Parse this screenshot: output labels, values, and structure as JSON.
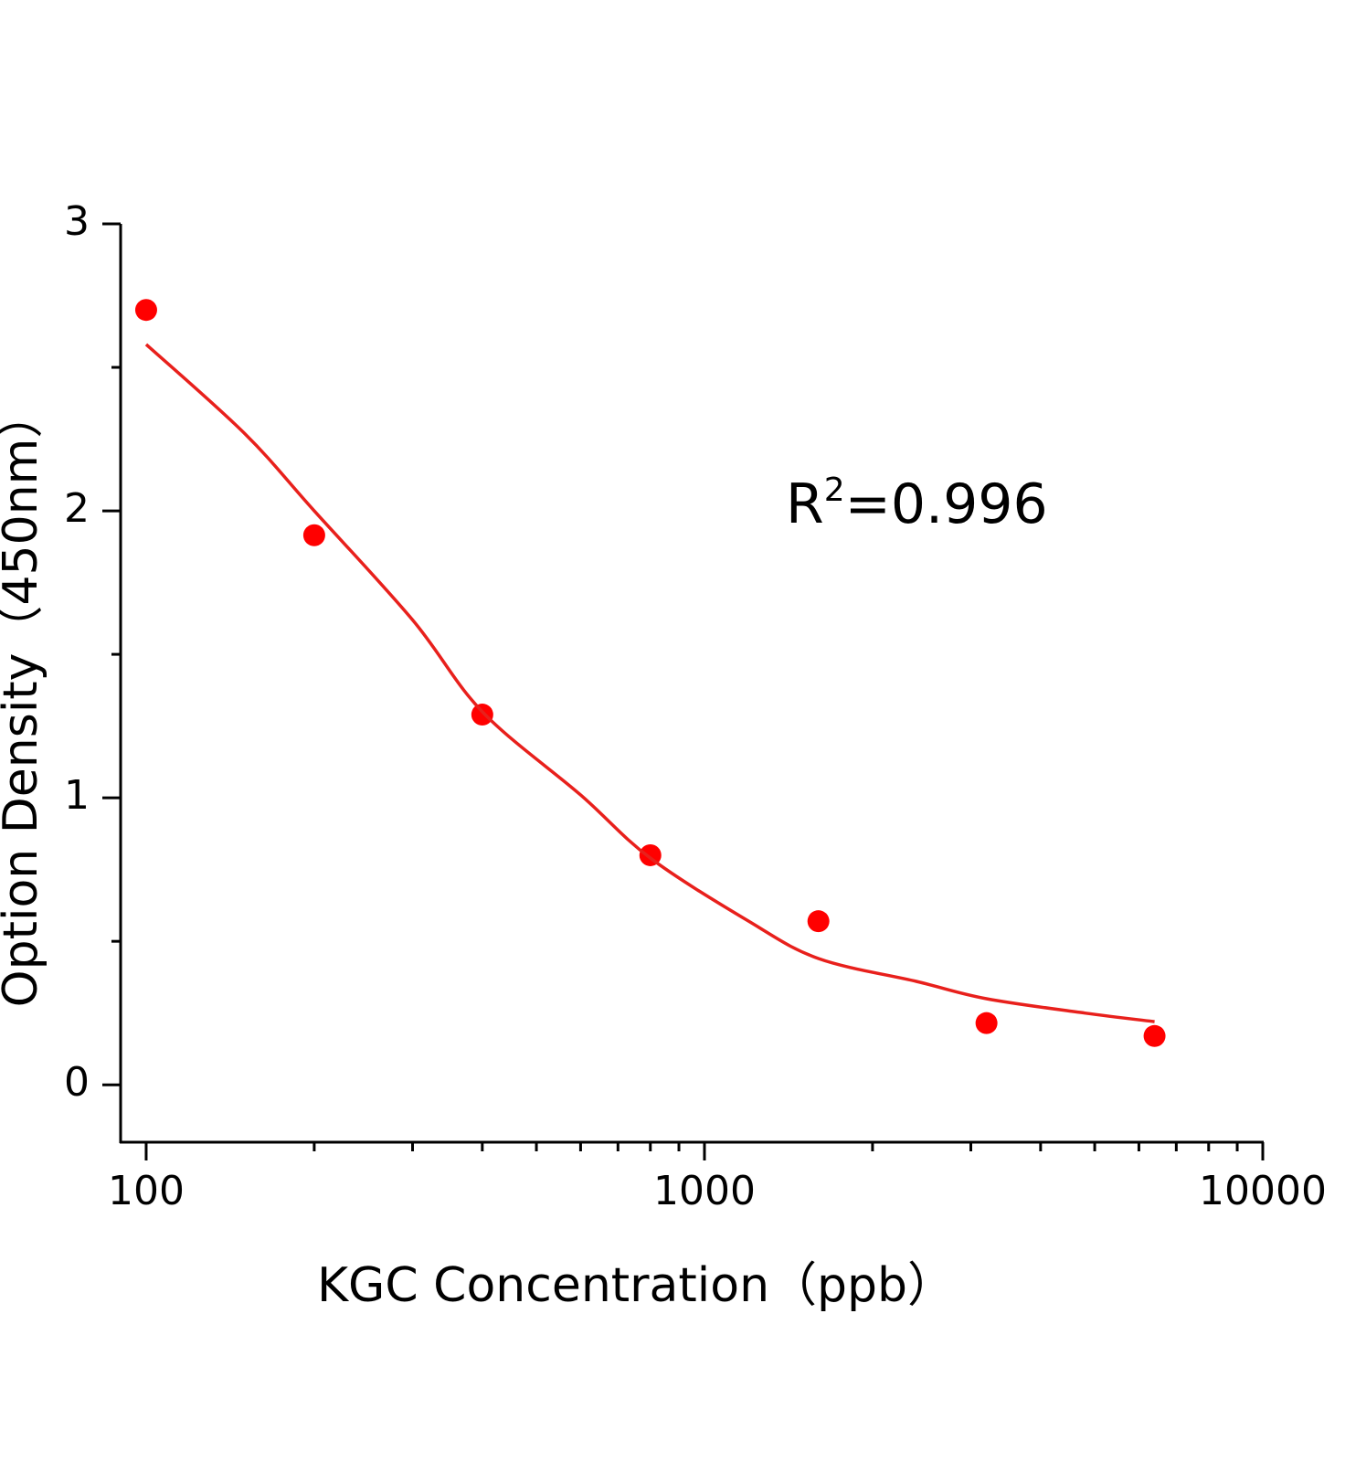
{
  "chart_data": {
    "type": "scatter",
    "xlabel": "KGC Concentration（ppb）",
    "ylabel": "Option Density（450nm）",
    "annotation": [
      "R",
      "2",
      "=0.996"
    ],
    "xscale": "log",
    "xlim": [
      90,
      10000
    ],
    "xticks": [
      100,
      1000,
      10000
    ],
    "xminorticks": [
      200,
      300,
      400,
      500,
      600,
      700,
      800,
      900,
      2000,
      3000,
      4000,
      5000,
      6000,
      7000,
      8000,
      9000
    ],
    "ylim": [
      -0.2,
      3
    ],
    "yticks": [
      0,
      1,
      2,
      3
    ],
    "yminorticks": [
      0.5,
      1.5,
      2.5
    ],
    "grid": false,
    "series": [
      {
        "type": "scatter",
        "color": "#ff0000",
        "x": [
          100,
          200,
          400,
          800,
          1600,
          3200,
          6400
        ],
        "values": [
          2.7,
          1.915,
          1.29,
          0.8,
          0.57,
          0.215,
          0.17
        ]
      },
      {
        "type": "line",
        "color": "#e8201c",
        "x": [
          100,
          150,
          200,
          300,
          400,
          600,
          800,
          1200,
          1600,
          2400,
          3200,
          4800,
          6400
        ],
        "values": [
          2.58,
          2.27,
          2.0,
          1.62,
          1.3,
          1.01,
          0.79,
          0.57,
          0.44,
          0.36,
          0.3,
          0.25,
          0.22
        ]
      }
    ]
  }
}
